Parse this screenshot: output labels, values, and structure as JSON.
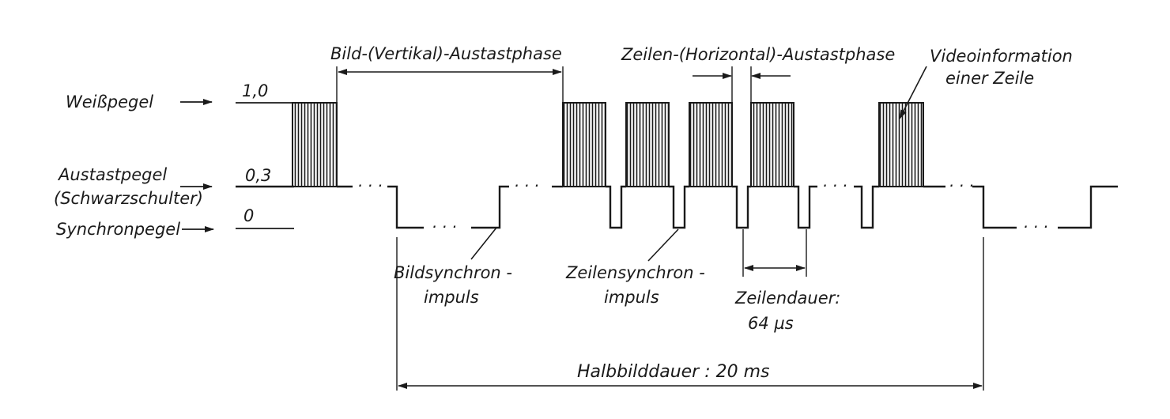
{
  "diagram": {
    "levels": {
      "white": {
        "name": "Weißpegel",
        "value": "1,0"
      },
      "blank": {
        "name_line1": "Austastpegel",
        "name_line2": "(Schwarzschulter)",
        "value": "0,3"
      },
      "sync": {
        "name": "Synchronpegel",
        "value": "0"
      }
    },
    "phases": {
      "vertical_blanking": "Bild-(Vertikal)-Austastphase",
      "horizontal_blanking": "Zeilen-(Horizontal)-Austastphase",
      "video_line_1": "Videoinformation",
      "video_line_2": "einer Zeile"
    },
    "pulses": {
      "frame_sync_1": "Bildsynchron -",
      "frame_sync_2": "impuls",
      "line_sync_1": "Zeilensynchron -",
      "line_sync_2": "impuls"
    },
    "durations": {
      "line_1": "Zeilendauer:",
      "line_2": "64 µs",
      "field": "Halbbilddauer :  20 ms"
    },
    "dots": "· · ·"
  }
}
